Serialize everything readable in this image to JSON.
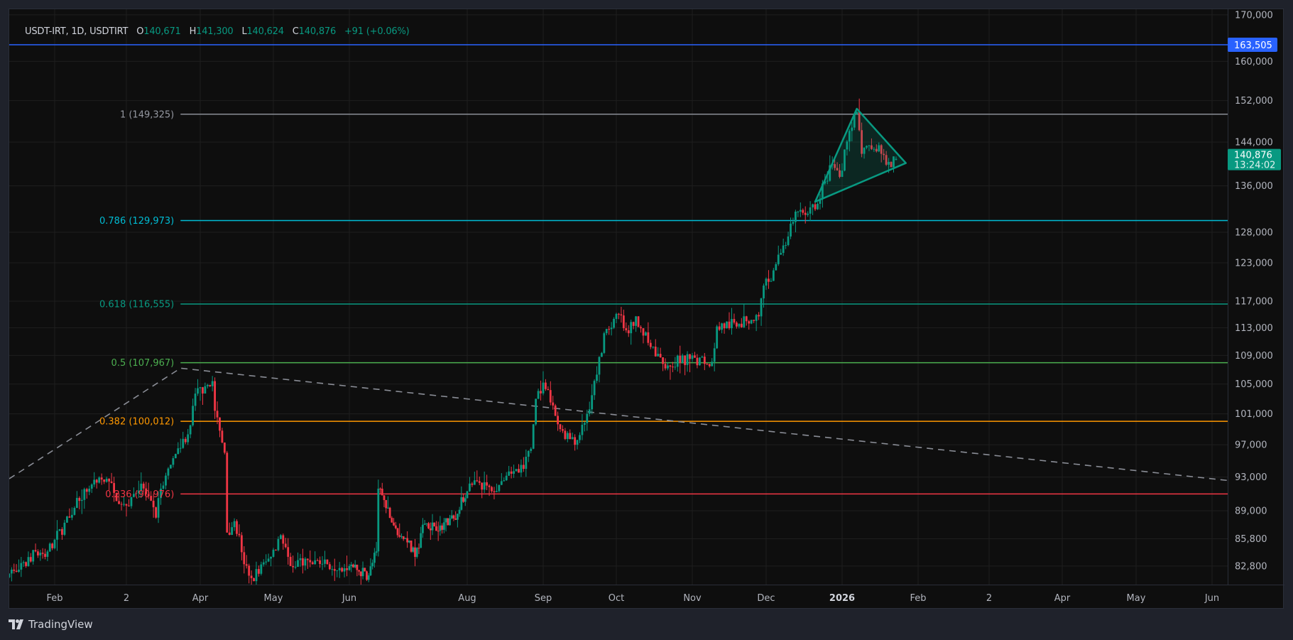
{
  "header": {
    "symbol": "USDT-IRT, 1D, USDTIRT",
    "open_label": "O",
    "open": "140,671",
    "high_label": "H",
    "high": "141,300",
    "low_label": "L",
    "low": "140,624",
    "close_label": "C",
    "close": "140,876",
    "change": "+91",
    "change_pct": "(+0.06%)"
  },
  "branding": {
    "logo_text": "TradingView"
  },
  "colors": {
    "up": "#089981",
    "down": "#f23645",
    "background": "#0e0e0e",
    "grid": "#1e1e1e",
    "axis_text": "#b2b5be",
    "alert_line": "#2962ff",
    "trendline": "#8a8d96",
    "triangle": "#089981"
  },
  "chart_data": {
    "type": "candlestick",
    "interval": "1D",
    "y_scale": "log",
    "ylim": [
      81000,
      171000
    ],
    "grid": true,
    "last_candle": {
      "open": 140671,
      "high": 141300,
      "low": 140624,
      "close": 140876
    },
    "close_path": [
      [
        "2025-01-13",
        82000
      ],
      [
        "2025-01-20",
        82800
      ],
      [
        "2025-01-24",
        84400
      ],
      [
        "2025-01-28",
        83800
      ],
      [
        "2025-02-01",
        85700
      ],
      [
        "2025-02-07",
        88200
      ],
      [
        "2025-02-10",
        90500
      ],
      [
        "2025-02-15",
        91600
      ],
      [
        "2025-02-22",
        92800
      ],
      [
        "2025-02-25",
        91100
      ],
      [
        "2025-03-02",
        89600
      ],
      [
        "2025-03-08",
        92200
      ],
      [
        "2025-03-14",
        88200
      ],
      [
        "2025-03-16",
        91600
      ],
      [
        "2025-03-20",
        94500
      ],
      [
        "2025-03-24",
        96600
      ],
      [
        "2025-03-28",
        99500
      ],
      [
        "2025-03-30",
        103700
      ],
      [
        "2025-04-03",
        104700
      ],
      [
        "2025-04-06",
        105400
      ],
      [
        "2025-04-07",
        101400
      ],
      [
        "2025-04-09",
        98800
      ],
      [
        "2025-04-11",
        96000
      ],
      [
        "2025-04-12",
        86500
      ],
      [
        "2025-04-15",
        87800
      ],
      [
        "2025-04-17",
        86200
      ],
      [
        "2025-04-19",
        83000
      ],
      [
        "2025-04-22",
        81500
      ],
      [
        "2025-04-30",
        83800
      ],
      [
        "2025-05-04",
        86200
      ],
      [
        "2025-05-08",
        82800
      ],
      [
        "2025-05-14",
        83600
      ],
      [
        "2025-05-23",
        83000
      ],
      [
        "2025-06-01",
        82800
      ],
      [
        "2025-06-11",
        81800
      ],
      [
        "2025-06-15",
        84400
      ],
      [
        "2025-06-16",
        91600
      ],
      [
        "2025-06-20",
        89300
      ],
      [
        "2025-06-25",
        87000
      ],
      [
        "2025-07-01",
        85400
      ],
      [
        "2025-07-05",
        83800
      ],
      [
        "2025-07-10",
        87500
      ],
      [
        "2025-07-18",
        87300
      ],
      [
        "2025-07-25",
        88100
      ],
      [
        "2025-08-01",
        91300
      ],
      [
        "2025-08-05",
        92500
      ],
      [
        "2025-08-11",
        91300
      ],
      [
        "2025-08-15",
        92500
      ],
      [
        "2025-08-19",
        93400
      ],
      [
        "2025-08-24",
        94000
      ],
      [
        "2025-08-27",
        96500
      ],
      [
        "2025-08-29",
        103000
      ],
      [
        "2025-09-01",
        105200
      ],
      [
        "2025-09-08",
        99000
      ],
      [
        "2025-09-14",
        97000
      ],
      [
        "2025-09-19",
        101000
      ],
      [
        "2025-09-23",
        106300
      ],
      [
        "2025-09-26",
        112200
      ],
      [
        "2025-10-02",
        115000
      ],
      [
        "2025-10-06",
        112200
      ],
      [
        "2025-10-09",
        114700
      ],
      [
        "2025-10-14",
        110800
      ],
      [
        "2025-10-20",
        107800
      ],
      [
        "2025-10-31",
        108500
      ],
      [
        "2025-11-09",
        108100
      ],
      [
        "2025-11-11",
        113200
      ],
      [
        "2025-11-20",
        113600
      ],
      [
        "2025-11-28",
        114700
      ],
      [
        "2025-11-30",
        119400
      ],
      [
        "2025-12-02",
        120000
      ],
      [
        "2025-12-07",
        124600
      ],
      [
        "2025-12-14",
        131500
      ],
      [
        "2025-12-21",
        131900
      ],
      [
        "2025-12-25",
        136800
      ],
      [
        "2025-12-28",
        139900
      ],
      [
        "2025-12-31",
        137600
      ],
      [
        "2026-01-04",
        146100
      ],
      [
        "2026-01-07",
        149800
      ],
      [
        "2026-01-09",
        141800
      ],
      [
        "2026-01-13",
        142700
      ],
      [
        "2026-01-16",
        143400
      ],
      [
        "2026-01-19",
        139800
      ],
      [
        "2026-01-23",
        140876
      ]
    ],
    "price_ticks": [
      170000,
      160000,
      152000,
      144000,
      136000,
      128000,
      123000,
      117000,
      113000,
      109000,
      105000,
      101000,
      97000,
      93000,
      89000,
      85800,
      82800
    ],
    "price_tick_labels": [
      "170,000",
      "160,000",
      "152,000",
      "144,000",
      "136,000",
      "128,000",
      "123,000",
      "117,000",
      "113,000",
      "109,000",
      "105,000",
      "101,000",
      "97,000",
      "93,000",
      "89,000",
      "85,800",
      "82,800"
    ],
    "time_ticks": [
      {
        "label": "Feb",
        "date": "2025-02-01"
      },
      {
        "label": "2",
        "date": "2025-03-02"
      },
      {
        "label": "Apr",
        "date": "2025-04-01"
      },
      {
        "label": "May",
        "date": "2025-05-01"
      },
      {
        "label": "Jun",
        "date": "2025-06-01"
      },
      {
        "label": "Aug",
        "date": "2025-08-01"
      },
      {
        "label": "Sep",
        "date": "2025-09-01"
      },
      {
        "label": "Oct",
        "date": "2025-10-01"
      },
      {
        "label": "Nov",
        "date": "2025-11-01"
      },
      {
        "label": "Dec",
        "date": "2025-12-01"
      },
      {
        "label": "2026",
        "date": "2026-01-01",
        "bold": true
      },
      {
        "label": "Feb",
        "date": "2026-02-01"
      },
      {
        "label": "2",
        "date": "2026-03-02"
      },
      {
        "label": "Apr",
        "date": "2026-04-01"
      },
      {
        "label": "May",
        "date": "2026-05-01"
      },
      {
        "label": "Jun",
        "date": "2026-06-01"
      }
    ],
    "horizontal_line": {
      "price": 163505,
      "label": "163,505",
      "color": "#2962ff"
    },
    "last_price_badge": {
      "price": 140876,
      "label": "140,876",
      "countdown": "13:24:02",
      "color": "#089981"
    },
    "fib_retracement": {
      "start_date": "2025-03-24",
      "levels": [
        {
          "level": "1",
          "price": 149325,
          "label": "1 (149,325)",
          "color": "#8a8d96",
          "text_color": "#9598a1"
        },
        {
          "level": "0.786",
          "price": 129973,
          "label": "0.786 (129,973)",
          "color": "#00bcd4",
          "text_color": "#00bcd4"
        },
        {
          "level": "0.618",
          "price": 116555,
          "label": "0.618 (116,555)",
          "color": "#089981",
          "text_color": "#089981"
        },
        {
          "level": "0.5",
          "price": 107967,
          "label": "0.5 (107,967)",
          "color": "#4caf50",
          "text_color": "#4caf50"
        },
        {
          "level": "0.382",
          "price": 100012,
          "label": "0.382 (100,012)",
          "color": "#ff9800",
          "text_color": "#ff9800"
        },
        {
          "level": "0.236",
          "price": 90976,
          "label": "0.236 (90,976)",
          "color": "#f23645",
          "text_color": "#f23645"
        }
      ]
    },
    "trendline": [
      {
        "date": "2025-01-13",
        "price": 92800
      },
      {
        "date": "2025-03-24",
        "price": 107200
      },
      {
        "date": "2026-06-07",
        "price": 92600
      }
    ],
    "triangle": [
      {
        "date": "2025-12-21",
        "price": 133200
      },
      {
        "date": "2026-01-07",
        "price": 150400
      },
      {
        "date": "2026-01-27",
        "price": 140100
      }
    ]
  }
}
